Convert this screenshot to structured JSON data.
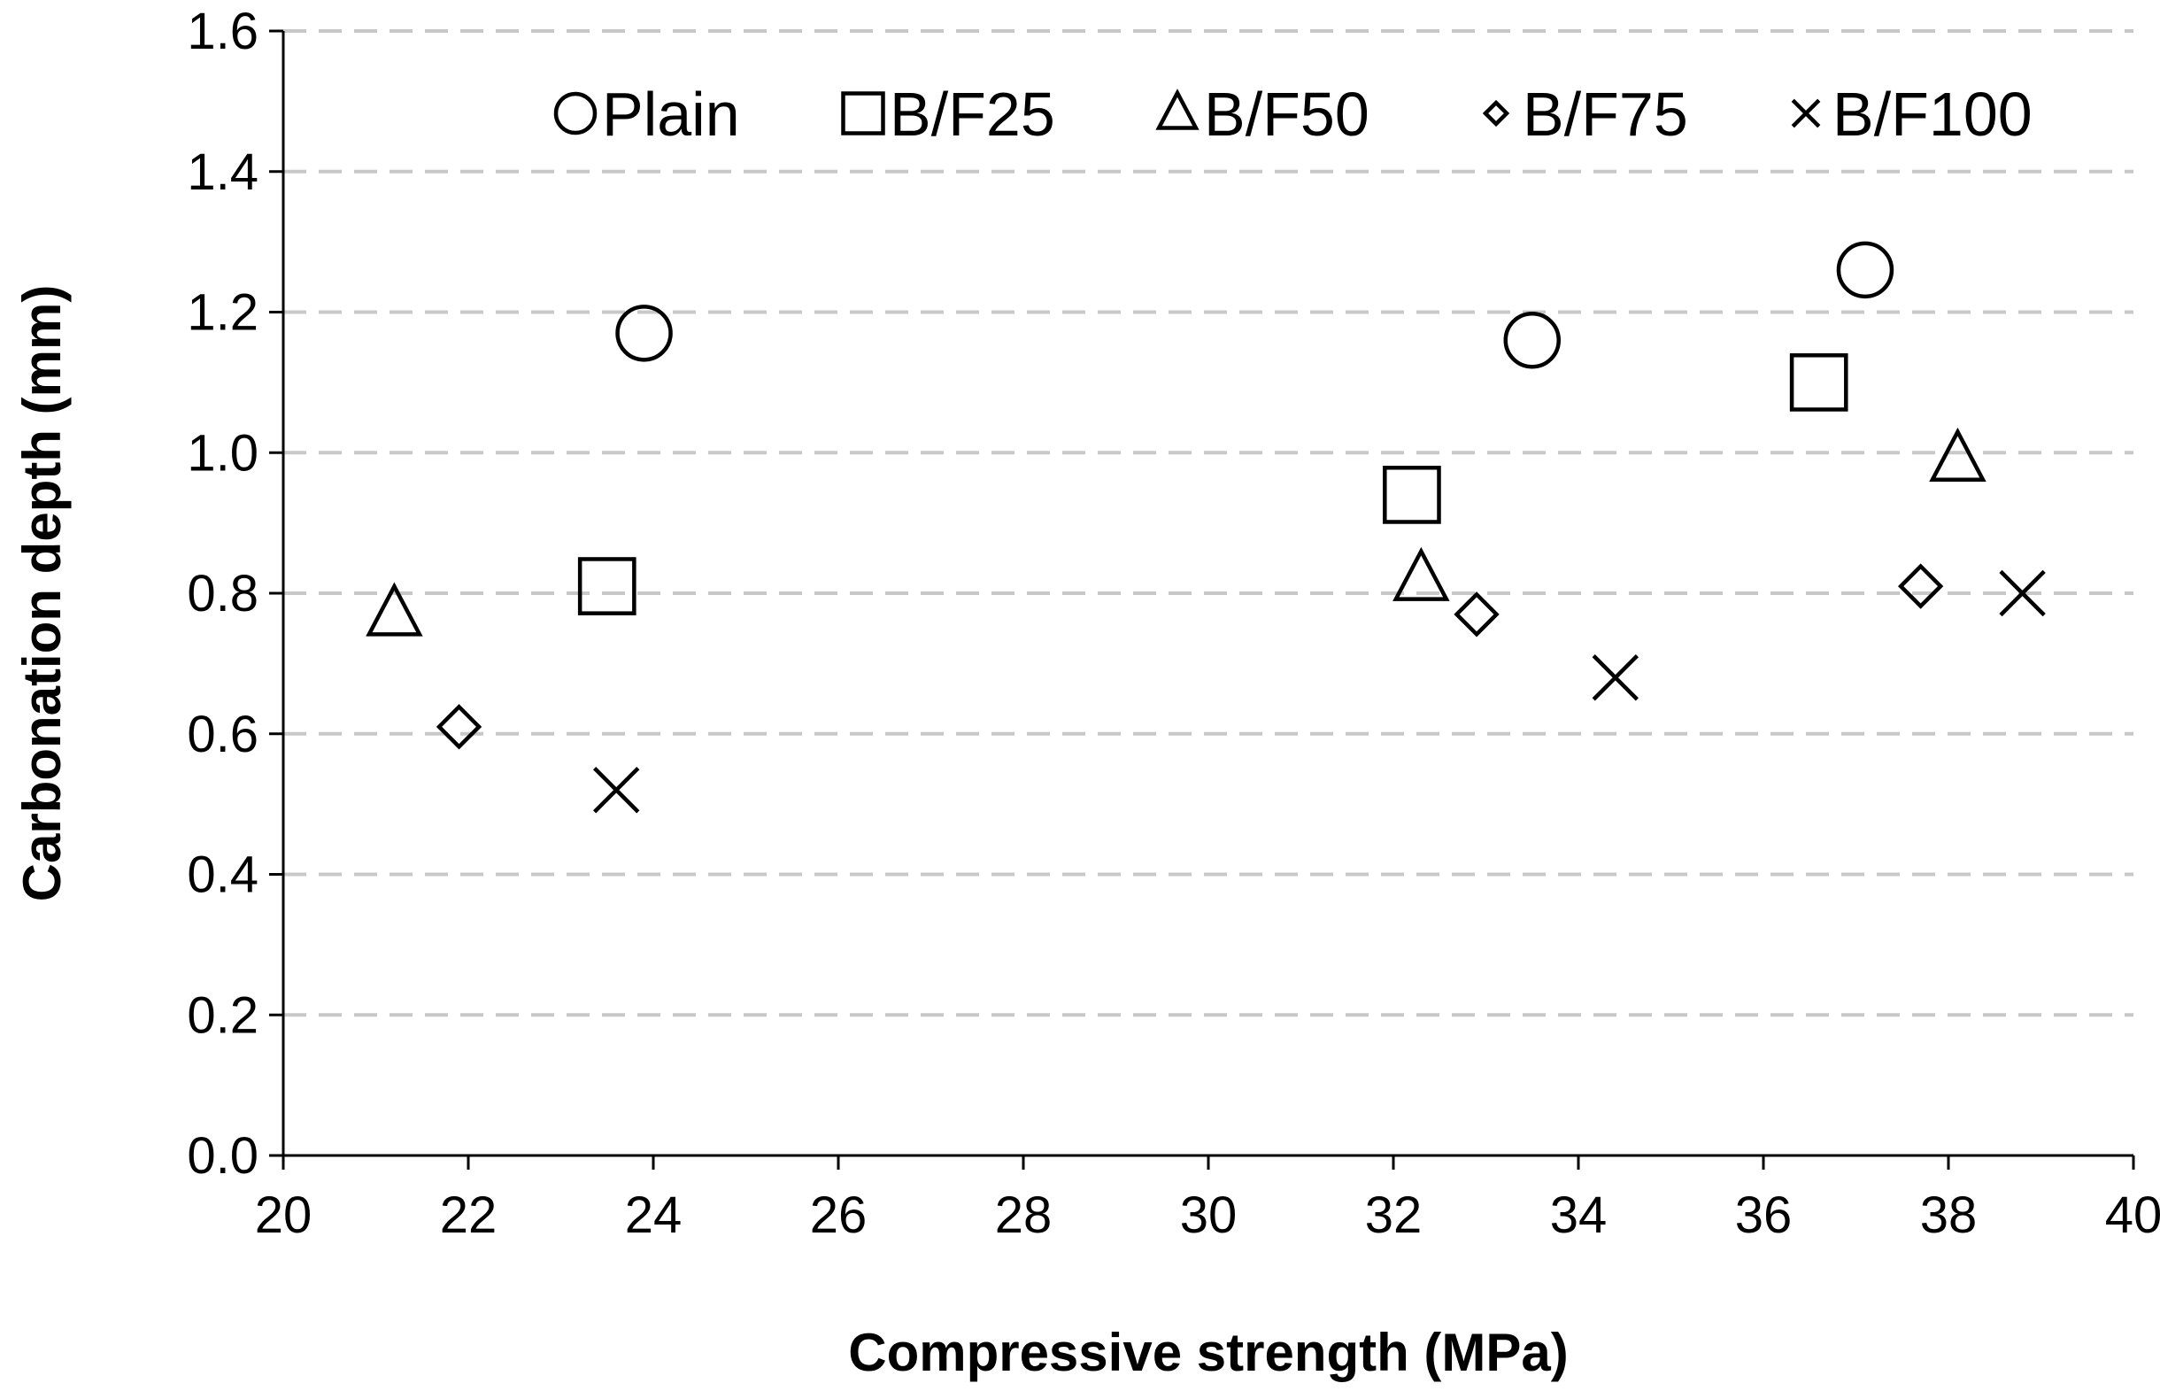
{
  "chart_data": {
    "type": "scatter",
    "title": "",
    "xlabel": "Compressive strength (MPa)",
    "ylabel": "Carbonation depth (mm)",
    "xlim": [
      20,
      40
    ],
    "ylim": [
      0.0,
      1.6
    ],
    "x_ticks": [
      "20",
      "22",
      "24",
      "26",
      "28",
      "30",
      "32",
      "34",
      "36",
      "38",
      "40"
    ],
    "y_ticks": [
      "0.0",
      "0.2",
      "0.4",
      "0.6",
      "0.8",
      "1.0",
      "1.2",
      "1.4",
      "1.6"
    ],
    "grid": "horizontal dashed",
    "legend_position": "top",
    "series": [
      {
        "name": "Plain",
        "marker": "circle",
        "points": [
          [
            23.9,
            1.17
          ],
          [
            33.5,
            1.16
          ],
          [
            37.1,
            1.26
          ]
        ]
      },
      {
        "name": "B/F25",
        "marker": "square",
        "points": [
          [
            23.5,
            0.81
          ],
          [
            32.2,
            0.94
          ],
          [
            36.6,
            1.1
          ]
        ]
      },
      {
        "name": "B/F50",
        "marker": "triangle",
        "points": [
          [
            21.2,
            0.77
          ],
          [
            32.3,
            0.82
          ],
          [
            38.1,
            0.99
          ]
        ]
      },
      {
        "name": "B/F75",
        "marker": "diamond",
        "points": [
          [
            21.9,
            0.61
          ],
          [
            32.9,
            0.77
          ],
          [
            37.7,
            0.81
          ]
        ]
      },
      {
        "name": "B/F100",
        "marker": "x",
        "points": [
          [
            23.6,
            0.52
          ],
          [
            34.4,
            0.68
          ],
          [
            38.8,
            0.8
          ]
        ]
      }
    ]
  }
}
